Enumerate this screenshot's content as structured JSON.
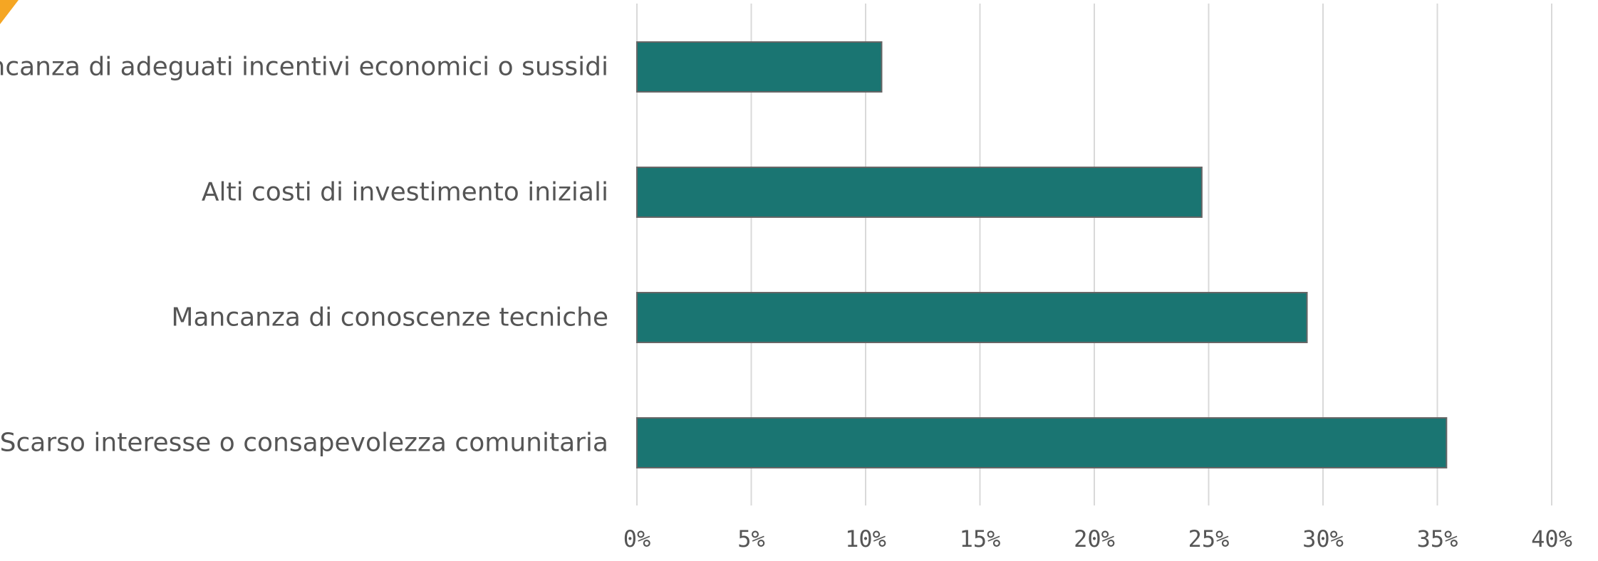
{
  "chart_data": {
    "type": "bar",
    "orientation": "horizontal",
    "categories": [
      "Mancanza di adeguati incentivi economici o sussidi",
      "Alti costi di investimento iniziali",
      "Mancanza di conoscenze tecniche",
      "Scarso interesse o consapevolezza comunitaria"
    ],
    "values": [
      10.7,
      24.7,
      29.3,
      35.4
    ],
    "xlim": [
      0,
      40
    ],
    "x_ticks": [
      0,
      5,
      10,
      15,
      20,
      25,
      30,
      35,
      40
    ],
    "x_tick_labels": [
      "0%",
      "5%",
      "10%",
      "15%",
      "20%",
      "25%",
      "30%",
      "35%",
      "40%"
    ],
    "title": "",
    "xlabel": "",
    "ylabel": "",
    "grid": "vertical",
    "legend": "none",
    "bar_color": "#1a7572",
    "accent_color": "#f5a623"
  }
}
